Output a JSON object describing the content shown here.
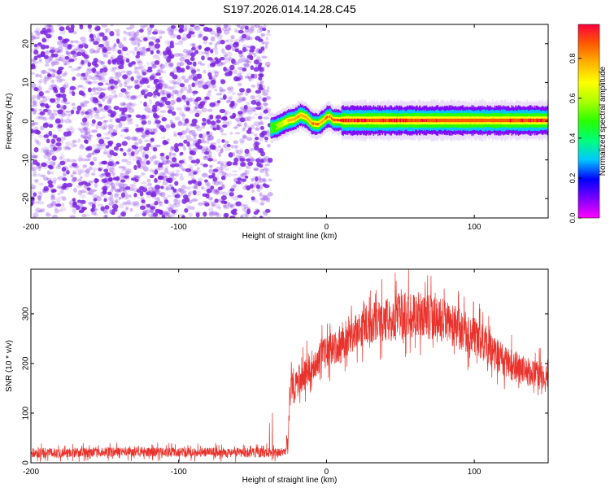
{
  "title": "S197.2026.014.14.28.C45",
  "colors": {
    "snr_line": "#e8322b",
    "scatter": "#8a3ee8",
    "frame": "#000000",
    "background": "#ffffff"
  },
  "colorbar": {
    "label": "Normalized spectral amplitude",
    "ticks": [
      "0.0",
      "0.2",
      "0.4",
      "0.6",
      "0.8"
    ],
    "tick_values": [
      0.0,
      0.2,
      0.4,
      0.6,
      0.8
    ],
    "range": [
      0,
      0.97
    ],
    "colors": [
      "#ff00ff",
      "#7d00ff",
      "#0000ff",
      "#00c8ff",
      "#00ff7a",
      "#28ff00",
      "#aaff00",
      "#ffff00",
      "#ffb400",
      "#ff5a00",
      "#ff003c"
    ]
  },
  "chart_data": [
    {
      "type": "heatmap",
      "name": "spectrogram",
      "xlabel": "Height of straight line (km)",
      "ylabel": "Frequency (Hz)",
      "xlim": [
        -200,
        150
      ],
      "ylim": [
        -25,
        25
      ],
      "xticks": [
        -200,
        -100,
        0,
        100
      ],
      "yticks": [
        -20,
        -10,
        0,
        10,
        20
      ],
      "xtick_labels": [
        "-200",
        "-100",
        "0",
        "100"
      ],
      "ytick_labels": [
        "-20",
        "-10",
        "0",
        "10",
        "20"
      ],
      "noise_region": {
        "x": [
          -200,
          -38
        ],
        "y": [
          -25,
          25
        ]
      },
      "signal_band": {
        "x": [
          -38,
          -34,
          -30,
          -26,
          -22,
          -18,
          -14,
          -10,
          -6,
          -2,
          0,
          2,
          4,
          6,
          10,
          30,
          60,
          90,
          110,
          130,
          150
        ],
        "center_hz": [
          -1.8,
          -1.4,
          -0.6,
          0.2,
          0.5,
          1.6,
          1.0,
          -0.6,
          -0.8,
          0.3,
          1.1,
          1.2,
          0.3,
          0.3,
          0.2,
          0.2,
          0.2,
          0.2,
          0.2,
          0.2,
          0.2
        ],
        "peak_amplitude": [
          0.45,
          0.55,
          0.65,
          0.75,
          0.8,
          0.85,
          0.8,
          0.85,
          0.85,
          0.85,
          0.9,
          0.85,
          0.9,
          0.95,
          0.95,
          0.95,
          0.95,
          0.9,
          0.9,
          0.95,
          0.95
        ]
      }
    },
    {
      "type": "line",
      "name": "snr",
      "xlabel": "Height of straight line (km)",
      "ylabel": "SNR (10 * v/v)",
      "xlim": [
        -200,
        150
      ],
      "ylim": [
        0,
        390
      ],
      "xticks": [
        -200,
        -100,
        0,
        100
      ],
      "yticks": [
        0,
        100,
        200,
        300
      ],
      "xtick_labels": [
        "-200",
        "-100",
        "0",
        "100"
      ],
      "ytick_labels": [
        "0",
        "100",
        "200",
        "300"
      ],
      "series": [
        {
          "color": "#e8322b",
          "x": [
            -200,
            -180,
            -160,
            -140,
            -120,
            -100,
            -80,
            -60,
            -40,
            -30,
            -26,
            -25,
            -24,
            -22,
            -20,
            -15,
            -10,
            -5,
            0,
            10,
            20,
            30,
            40,
            50,
            60,
            70,
            80,
            90,
            100,
            110,
            120,
            130,
            140,
            150
          ],
          "values": [
            20,
            20,
            21,
            22,
            22,
            21,
            21,
            20,
            20,
            22,
            35,
            120,
            170,
            150,
            160,
            180,
            195,
            210,
            225,
            240,
            265,
            280,
            290,
            295,
            300,
            295,
            285,
            270,
            255,
            230,
            205,
            190,
            180,
            170
          ],
          "noise_amplitude": [
            12,
            12,
            12,
            12,
            12,
            12,
            12,
            12,
            12,
            12,
            20,
            40,
            45,
            40,
            40,
            40,
            40,
            40,
            40,
            42,
            45,
            50,
            55,
            60,
            60,
            58,
            55,
            52,
            48,
            45,
            42,
            38,
            35,
            35
          ]
        }
      ]
    }
  ]
}
